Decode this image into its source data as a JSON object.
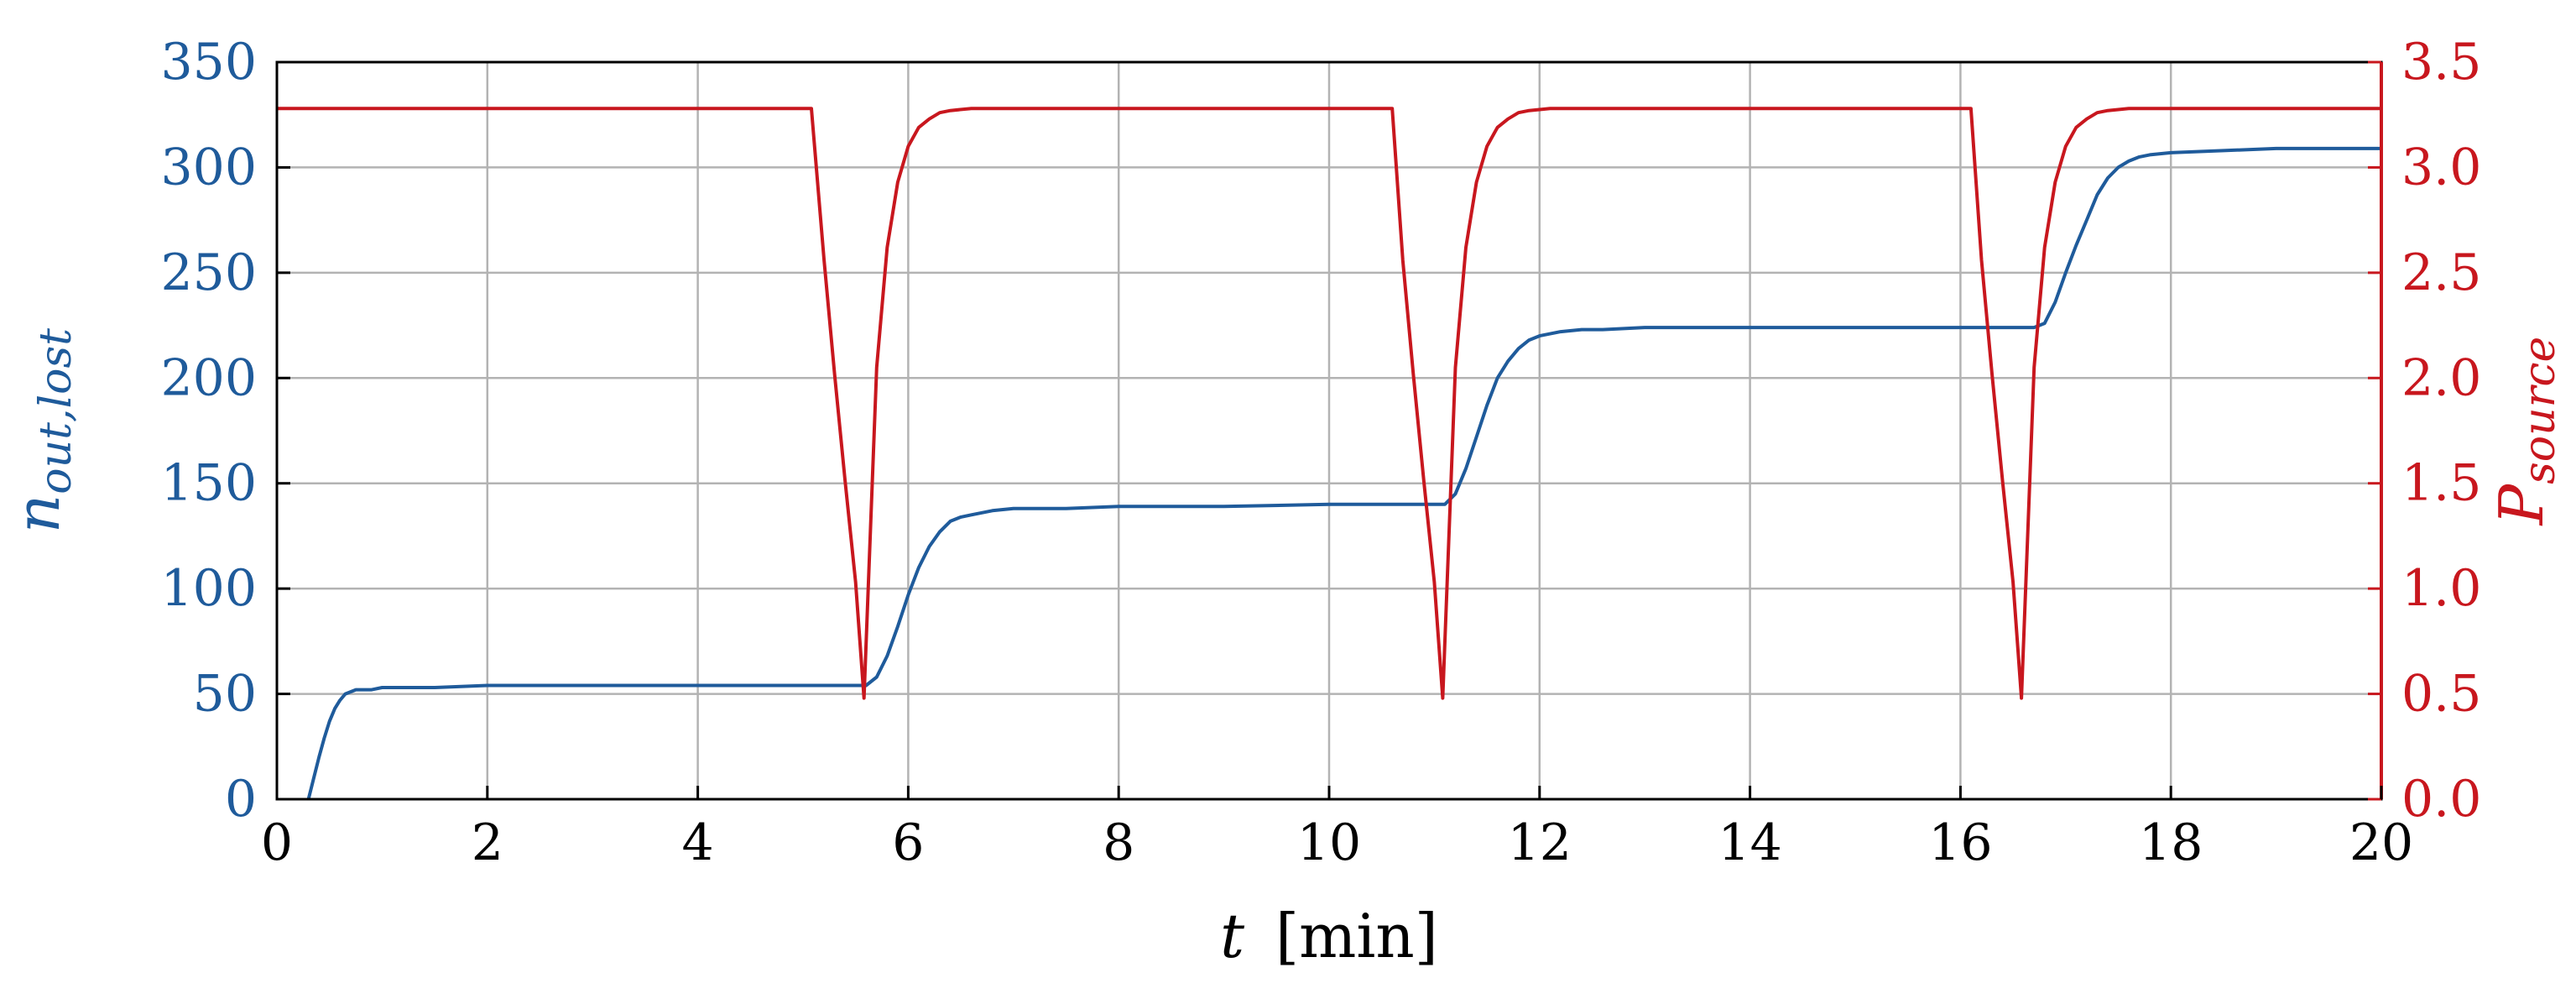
{
  "chart_data": {
    "type": "line",
    "xlabel": {
      "var": "t",
      "unit": "[min]"
    },
    "ylabel_left": {
      "base": "n",
      "sub": "out,lost"
    },
    "ylabel_right": {
      "base": "P",
      "sub": "source"
    },
    "xlim": [
      0,
      20
    ],
    "ylim_left": [
      0,
      350
    ],
    "ylim_right": [
      0.0,
      3.5
    ],
    "x_ticks": [
      "0",
      "2",
      "4",
      "6",
      "8",
      "10",
      "12",
      "14",
      "16",
      "18",
      "20"
    ],
    "y_left_ticks": [
      "0",
      "50",
      "100",
      "150",
      "200",
      "250",
      "300",
      "350"
    ],
    "y_right_ticks": [
      "0.0",
      "0.5",
      "1.0",
      "1.5",
      "2.0",
      "2.5",
      "3.0",
      "3.5"
    ],
    "grid": true,
    "colors": {
      "left_series": "#1f5b9b",
      "right_series": "#c8171e",
      "grid": "#b3b3b3",
      "axis": "#000000"
    },
    "series": [
      {
        "axis": "left",
        "x": [
          0.3,
          0.35,
          0.4,
          0.45,
          0.5,
          0.55,
          0.6,
          0.65,
          0.7,
          0.75,
          0.8,
          0.9,
          1.0,
          1.5,
          2.0,
          3.0,
          4.0,
          5.0,
          5.5,
          5.6,
          5.7,
          5.8,
          5.9,
          6.0,
          6.1,
          6.2,
          6.3,
          6.4,
          6.5,
          6.6,
          6.8,
          7.0,
          7.5,
          8.0,
          9.0,
          10.0,
          11.0,
          11.1,
          11.2,
          11.3,
          11.4,
          11.5,
          11.6,
          11.7,
          11.8,
          11.9,
          12.0,
          12.2,
          12.4,
          12.6,
          13.0,
          14.0,
          15.0,
          16.0,
          16.7,
          16.8,
          16.9,
          17.0,
          17.1,
          17.2,
          17.3,
          17.4,
          17.5,
          17.6,
          17.7,
          17.8,
          18.0,
          18.5,
          19.0,
          20.0
        ],
        "y": [
          0,
          10,
          20,
          29,
          37,
          43,
          47,
          50,
          51,
          52,
          52,
          52,
          53,
          53,
          54,
          54,
          54,
          54,
          54,
          54,
          58,
          68,
          82,
          97,
          110,
          120,
          127,
          132,
          134,
          135,
          137,
          138,
          138,
          139,
          139,
          140,
          140,
          140,
          145,
          157,
          172,
          187,
          200,
          208,
          214,
          218,
          220,
          222,
          223,
          223,
          224,
          224,
          224,
          224,
          224,
          226,
          236,
          250,
          263,
          275,
          287,
          295,
          300,
          303,
          305,
          306,
          307,
          308,
          309,
          309
        ]
      },
      {
        "axis": "right",
        "x": [
          0,
          5.08,
          5.08,
          5.2,
          5.3,
          5.4,
          5.5,
          5.58,
          5.58,
          5.7,
          5.8,
          5.9,
          6.0,
          6.1,
          6.2,
          6.3,
          6.4,
          6.6,
          7.0,
          10.6,
          10.6,
          10.7,
          10.8,
          10.9,
          11.0,
          11.08,
          11.08,
          11.2,
          11.3,
          11.4,
          11.5,
          11.6,
          11.7,
          11.8,
          11.9,
          12.1,
          12.5,
          16.1,
          16.1,
          16.2,
          16.3,
          16.4,
          16.5,
          16.58,
          16.58,
          16.7,
          16.8,
          16.9,
          17.0,
          17.1,
          17.2,
          17.3,
          17.4,
          17.6,
          18.0,
          20.0
        ],
        "y": [
          3.28,
          3.28,
          3.28,
          2.56,
          2.02,
          1.51,
          1.03,
          0.48,
          0.48,
          2.05,
          2.62,
          2.93,
          3.1,
          3.19,
          3.23,
          3.26,
          3.27,
          3.28,
          3.28,
          3.28,
          3.28,
          2.56,
          2.02,
          1.51,
          1.03,
          0.48,
          0.48,
          2.05,
          2.62,
          2.93,
          3.1,
          3.19,
          3.23,
          3.26,
          3.27,
          3.28,
          3.28,
          3.28,
          3.28,
          2.56,
          2.02,
          1.51,
          1.03,
          0.48,
          0.48,
          2.05,
          2.62,
          2.93,
          3.1,
          3.19,
          3.23,
          3.26,
          3.27,
          3.28,
          3.28,
          3.28
        ]
      }
    ]
  }
}
